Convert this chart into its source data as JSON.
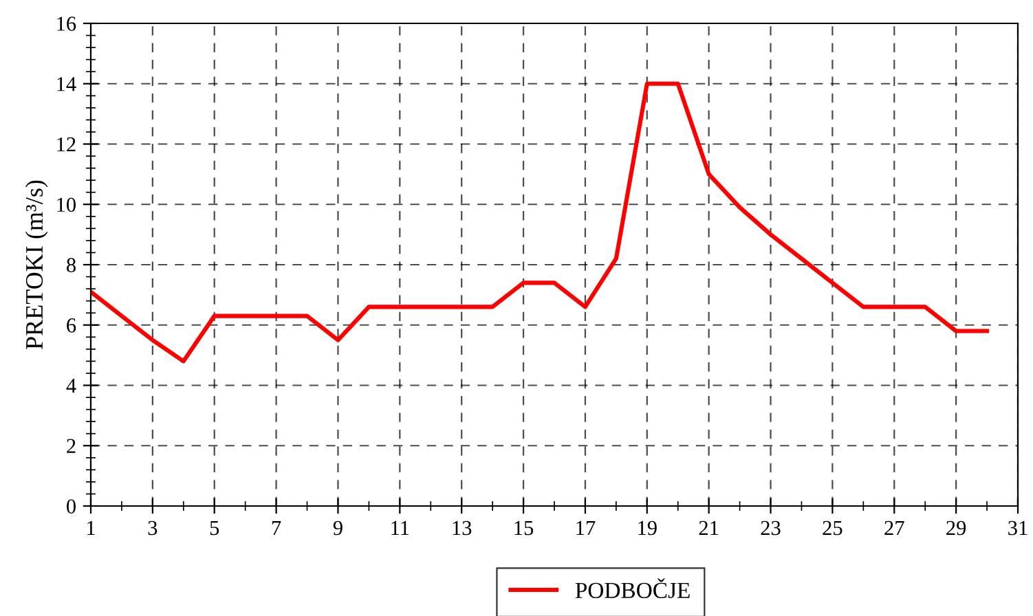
{
  "chart_data": {
    "type": "line",
    "ylabel": "PRETOKI (m³/s)",
    "x": [
      1,
      2,
      3,
      4,
      5,
      6,
      7,
      8,
      9,
      10,
      11,
      12,
      13,
      14,
      15,
      16,
      17,
      18,
      19,
      20,
      21,
      22,
      23,
      24,
      25,
      26,
      27,
      28,
      29,
      30
    ],
    "series": [
      {
        "name": "PODBOČJE",
        "color": "#ff0000",
        "values": [
          7.1,
          6.3,
          5.5,
          4.8,
          6.3,
          6.3,
          6.3,
          6.3,
          5.5,
          6.6,
          6.6,
          6.6,
          6.6,
          6.6,
          7.4,
          7.4,
          6.6,
          8.2,
          14,
          14,
          11,
          9.9,
          9.0,
          8.2,
          7.4,
          6.6,
          6.6,
          6.6,
          5.8,
          5.8
        ]
      }
    ],
    "xlim": [
      1,
      31
    ],
    "xticks": [
      1,
      3,
      5,
      7,
      9,
      11,
      13,
      15,
      17,
      19,
      21,
      23,
      25,
      27,
      29,
      31
    ],
    "ylim": [
      0,
      16
    ],
    "yticks": [
      0,
      2,
      4,
      6,
      8,
      10,
      12,
      14,
      16
    ],
    "grid": true,
    "legend": "bottom",
    "marker": "none",
    "line_style": "solid"
  }
}
